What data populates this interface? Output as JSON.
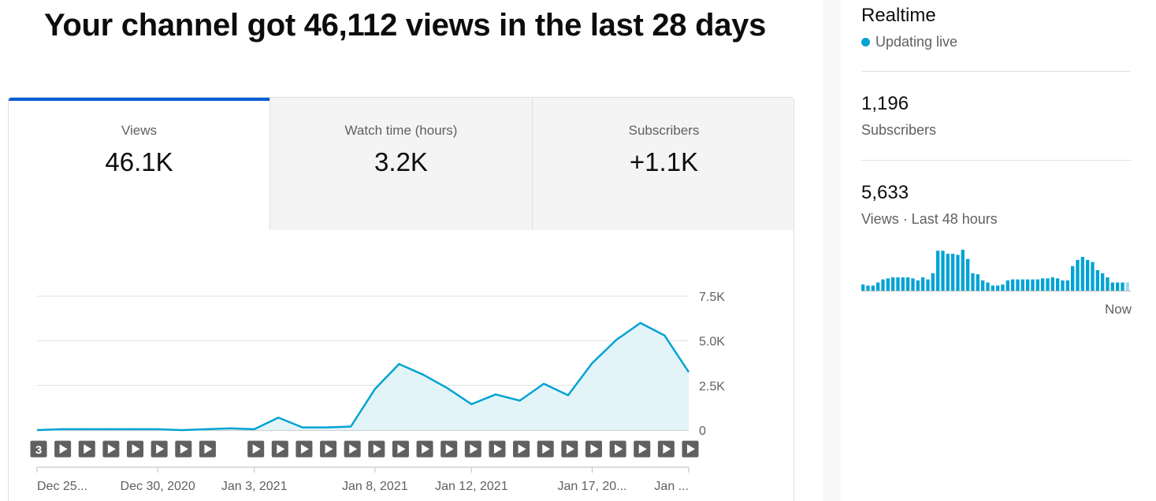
{
  "headline": "Your channel got 46,112 views in the last 28 days",
  "tabs": [
    {
      "label": "Views",
      "value": "46.1K",
      "active": true
    },
    {
      "label": "Watch time (hours)",
      "value": "3.2K",
      "active": false
    },
    {
      "label": "Subscribers",
      "value": "+1.1K",
      "active": false
    }
  ],
  "realtime": {
    "title": "Realtime",
    "status": "Updating live",
    "subscribers_value": "1,196",
    "subscribers_label": "Subscribers",
    "views_value": "5,633",
    "views_label": "Views · Last 48 hours",
    "now_label": "Now",
    "bars": [
      6,
      5,
      5,
      8,
      11,
      12,
      13,
      13,
      13,
      13,
      12,
      10,
      13,
      11,
      17,
      39,
      39,
      36,
      36,
      35,
      40,
      31,
      17,
      16,
      10,
      8,
      5,
      5,
      6,
      10,
      11,
      11,
      11,
      11,
      11,
      11,
      12,
      12,
      13,
      12,
      10,
      10,
      24,
      30,
      33,
      30,
      28,
      20,
      17,
      13,
      8,
      8,
      8,
      8
    ]
  },
  "colors": {
    "accent": "#00a3d4",
    "area_fill": "#e3f4f9",
    "active_tab": "#065fd4",
    "realtime_bar": "#00a3d4",
    "realtime_last_bar": "#9fd9ea"
  },
  "chart_data": {
    "type": "area",
    "title": "",
    "xlabel": "",
    "ylabel": "",
    "ylim": [
      0,
      7500
    ],
    "yticks": [
      "7.5K",
      "5.0K",
      "2.5K",
      "0"
    ],
    "ytick_values": [
      7500,
      5000,
      2500,
      0
    ],
    "x_tick_labels": [
      "Dec 25...",
      "Dec 30, 2020",
      "Jan 3, 2021",
      "Jan 8, 2021",
      "Jan 12, 2021",
      "Jan 17, 20...",
      "Jan ..."
    ],
    "x_tick_indices": [
      0,
      5,
      9,
      14,
      18,
      23,
      27
    ],
    "grid": true,
    "series": [
      {
        "values": [
          0,
          50,
          50,
          50,
          50,
          50,
          0,
          50,
          100,
          50,
          700,
          150,
          150,
          200,
          2300,
          3700,
          3100,
          2350,
          1450,
          2000,
          1650,
          2600,
          1950,
          3750,
          5050,
          6000,
          5300,
          3250
        ]
      }
    ],
    "markers": [
      "3",
      "play",
      "play",
      "play",
      "play",
      "play",
      "play",
      "play",
      "",
      "play",
      "play",
      "play",
      "play",
      "play",
      "play",
      "play",
      "play",
      "play",
      "play",
      "play",
      "play",
      "play",
      "play",
      "play",
      "play",
      "play",
      "play",
      "play"
    ]
  }
}
